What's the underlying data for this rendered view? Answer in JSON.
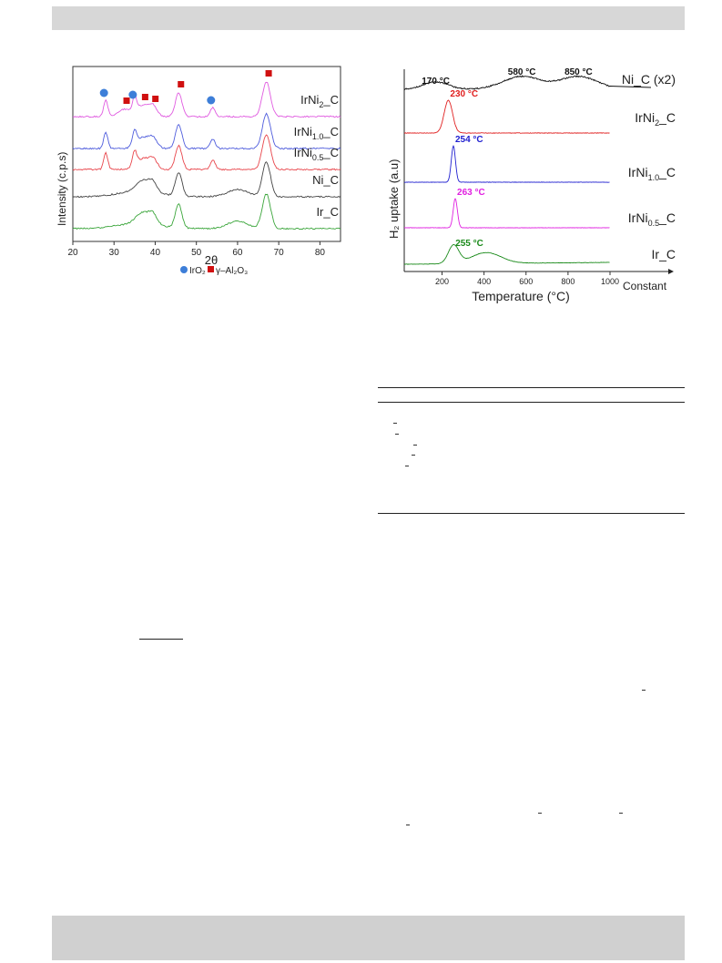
{
  "xrd_chart": {
    "chart_data": {
      "type": "line",
      "xlabel": "2θ",
      "ylabel": "Intensity (c.p.s)",
      "xlim": [
        20,
        85
      ],
      "xticks": [
        20,
        30,
        40,
        50,
        60,
        70,
        80
      ],
      "series": [
        {
          "name": "IrNi₂_C",
          "color": "#e05ae0",
          "peaks": [
            28,
            32.5,
            35,
            37,
            39.5,
            45.7,
            54,
            67
          ]
        },
        {
          "name": "IrNi₁.₀_C",
          "color": "#4d5bdc",
          "peaks": [
            28,
            35,
            37,
            39.5,
            45.7,
            54,
            67
          ]
        },
        {
          "name": "IrNi₀.₅_C",
          "color": "#e8454b",
          "peaks": [
            28,
            35,
            37,
            39.5,
            45.7,
            54,
            67
          ]
        },
        {
          "name": "Ni_C",
          "color": "#444444",
          "peaks": [
            37,
            39.5,
            45.7,
            60,
            67
          ]
        },
        {
          "name": "Ir_C",
          "color": "#3aa53a",
          "peaks": [
            37,
            39.5,
            45.7,
            60,
            67
          ]
        }
      ],
      "markers": {
        "iro2_positions": [
          28,
          35,
          54
        ],
        "al2o3_positions": [
          32.5,
          37,
          39.5,
          45.7,
          67
        ]
      },
      "legend": {
        "iro2": "IrO₂",
        "al2o3": "γ–Al₂O₃",
        "placement": "bottom"
      }
    }
  },
  "tpr_chart": {
    "chart_data": {
      "type": "line",
      "xlabel": "Temperature (°C)",
      "ylabel": "H₂ uptake (a.u)",
      "xticks": [
        200,
        400,
        600,
        800,
        1000
      ],
      "x_extra": "Constant",
      "series": [
        {
          "name": "Ni_C (x2)",
          "color": "#111111",
          "peaks": [
            170,
            580,
            850
          ],
          "annotations": [
            "170 °C",
            "580 °C",
            "850 °C"
          ]
        },
        {
          "name": "IrNi₂_C",
          "color": "#e02020",
          "peaks": [
            230
          ],
          "annotations": [
            "230 °C"
          ]
        },
        {
          "name": "IrNi₁.₀_C",
          "color": "#2020d0",
          "peaks": [
            254
          ],
          "annotations": [
            "254 °C"
          ]
        },
        {
          "name": "IrNi₀.₅_C",
          "color": "#e020e0",
          "peaks": [
            263
          ],
          "annotations": [
            "263 °C"
          ]
        },
        {
          "name": "Ir_C",
          "color": "#1a8a1a",
          "peaks": [
            255,
            410
          ],
          "annotations": [
            "255 °C"
          ]
        }
      ]
    }
  }
}
